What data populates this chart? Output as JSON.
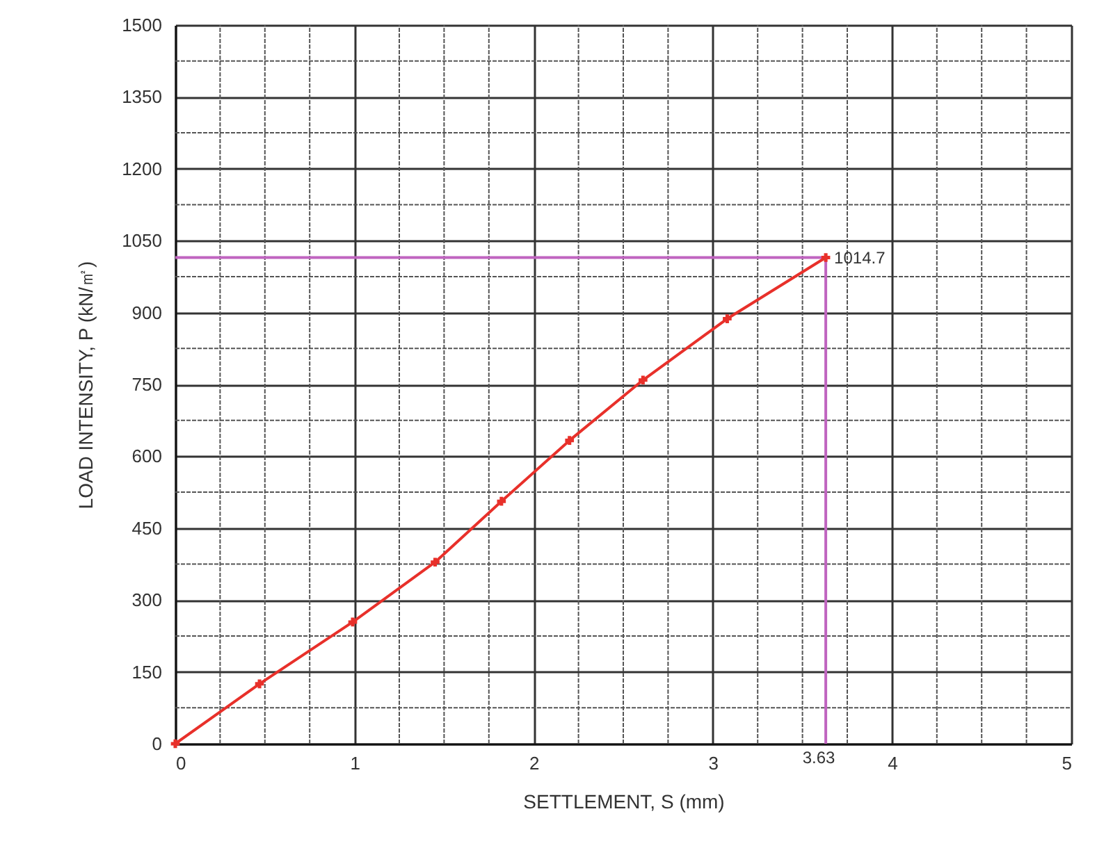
{
  "chart_data": {
    "type": "line",
    "xlabel": "SETTLEMENT, S (mm)",
    "ylabel": "LOAD INTENSITY, P (kN/㎡)",
    "x": [
      0,
      0.47,
      0.99,
      1.45,
      1.82,
      2.2,
      2.61,
      3.08,
      3.63
    ],
    "series": [
      {
        "color": "#e8302a",
        "values": [
          0,
          125,
          254,
          379,
          506,
          633,
          759,
          887,
          1014.7
        ]
      }
    ],
    "marker": "cross",
    "line_style": "solid",
    "grid": true,
    "xlim": [
      0,
      5
    ],
    "xticks": [
      0,
      1,
      2,
      3,
      4,
      5
    ],
    "ylim": [
      0,
      1500
    ],
    "yticks": [
      0,
      150,
      300,
      450,
      600,
      750,
      900,
      1050,
      1200,
      1350,
      1500
    ],
    "ref_lines": [
      {
        "axis": "y",
        "value": 1014.7,
        "label": "1014.7",
        "color": "#c065c0"
      },
      {
        "axis": "x",
        "value": 3.63,
        "label": "3.63",
        "color": "#c065c0"
      }
    ]
  }
}
